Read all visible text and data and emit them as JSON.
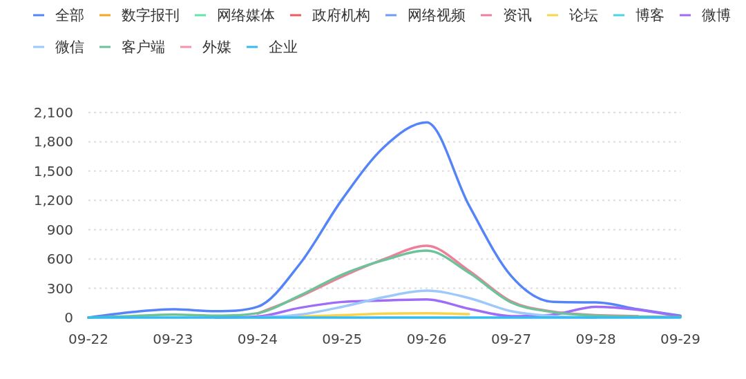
{
  "chart_data": {
    "type": "line",
    "legend": "top",
    "grid": "y",
    "marker": "none",
    "line_style": "solid",
    "categories": [
      "09-22",
      null,
      "09-23",
      null,
      "09-24",
      null,
      "09-25",
      null,
      "09-26",
      null,
      "09-27",
      null,
      "09-28",
      null,
      "09-29"
    ],
    "ylim": [
      0,
      2100
    ],
    "yticks": [
      0,
      300,
      600,
      900,
      {
        "value": 1200,
        "label": "1,200"
      },
      {
        "value": 1500,
        "label": "1,500"
      },
      {
        "value": 1800,
        "label": "1,800"
      },
      {
        "value": 2100,
        "label": "2,100"
      }
    ],
    "series": [
      {
        "name": "全部",
        "color": "#5584f8",
        "values": [
          0,
          55,
          85,
          65,
          110,
          550,
          1210,
          1750,
          2000,
          1150,
          425,
          160,
          155,
          85,
          20
        ]
      },
      {
        "name": "数字报刊",
        "color": "#f6a623",
        "values": [
          null,
          null,
          null,
          null,
          null,
          null,
          null,
          null,
          null,
          null,
          null,
          null,
          null,
          null,
          null
        ]
      },
      {
        "name": "网络媒体",
        "color": "#5ee6a8",
        "values": [
          null,
          null,
          null,
          null,
          null,
          null,
          null,
          null,
          null,
          null,
          null,
          null,
          null,
          null,
          null
        ]
      },
      {
        "name": "政府机构",
        "color": "#f05a5a",
        "values": [
          null,
          null,
          null,
          null,
          null,
          null,
          null,
          null,
          null,
          null,
          null,
          null,
          null,
          null,
          null
        ]
      },
      {
        "name": "网络视频",
        "color": "#6f9cf8",
        "values": [
          null,
          null,
          null,
          null,
          null,
          null,
          null,
          null,
          null,
          null,
          null,
          null,
          null,
          null,
          null
        ]
      },
      {
        "name": "资讯",
        "color": "#ee7f9b",
        "values": [
          null,
          null,
          null,
          null,
          40,
          215,
          420,
          600,
          735,
          480,
          165,
          60,
          25,
          15,
          null
        ]
      },
      {
        "name": "论坛",
        "color": "#f8d44a",
        "values": [
          null,
          null,
          null,
          null,
          0,
          10,
          25,
          40,
          45,
          35,
          null,
          null,
          null,
          null,
          null
        ]
      },
      {
        "name": "博客",
        "color": "#4dd4e2",
        "values": [
          null,
          null,
          null,
          null,
          null,
          null,
          null,
          null,
          null,
          null,
          null,
          null,
          null,
          null,
          null
        ]
      },
      {
        "name": "微博",
        "color": "#9e6cf7",
        "values": [
          null,
          null,
          null,
          0,
          10,
          100,
          160,
          175,
          185,
          90,
          15,
          30,
          110,
          80,
          10
        ]
      },
      {
        "name": "微信",
        "color": "#9cc8fb",
        "values": [
          null,
          null,
          null,
          null,
          0,
          30,
          110,
          210,
          275,
          200,
          65,
          15,
          0,
          null,
          null
        ]
      },
      {
        "name": "客户端",
        "color": "#6cc399",
        "values": [
          0,
          15,
          30,
          20,
          45,
          225,
          440,
          590,
          685,
          460,
          155,
          55,
          20,
          10,
          5
        ]
      },
      {
        "name": "外媒",
        "color": "#f394a9",
        "values": [
          null,
          null,
          null,
          null,
          null,
          null,
          null,
          null,
          null,
          null,
          null,
          null,
          null,
          null,
          null
        ]
      },
      {
        "name": "企业",
        "color": "#36baf0",
        "values": [
          0,
          0,
          0,
          0,
          0,
          0,
          0,
          0,
          0,
          0,
          0,
          0,
          0,
          0,
          0
        ]
      }
    ]
  }
}
